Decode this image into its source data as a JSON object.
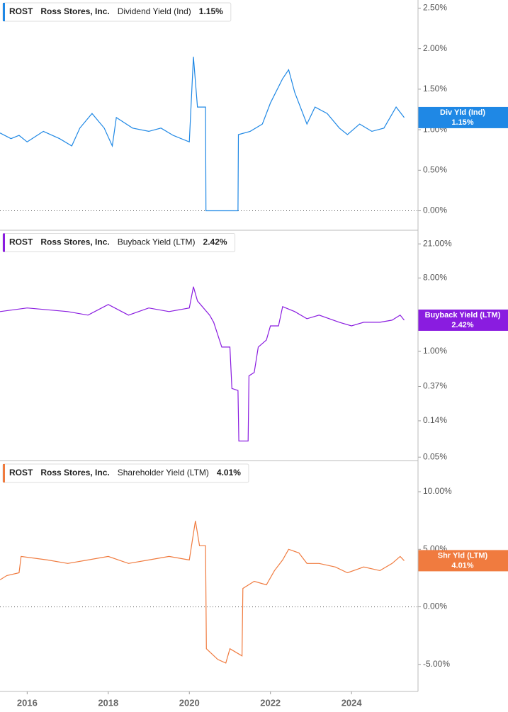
{
  "chart_data": [
    {
      "type": "line",
      "ticker": "ROST",
      "company": "Ross Stores, Inc.",
      "series_label": "Dividend Yield (Ind)",
      "last_value_label": "1.15%",
      "badge_label": "Div Yld (Ind)",
      "xlim": [
        2015.33,
        2025.64
      ],
      "ylim": [
        -0.24,
        2.6
      ],
      "y_scale": "linear",
      "zero_line": true,
      "yticks": [
        {
          "value": 0,
          "label": "0.00%"
        },
        {
          "value": 0.5,
          "label": "0.50%"
        },
        {
          "value": 1,
          "label": "1.00%"
        },
        {
          "value": 1.5,
          "label": "1.50%"
        },
        {
          "value": 2,
          "label": "2.00%"
        },
        {
          "value": 2.5,
          "label": "2.50%"
        }
      ],
      "x": [
        2015.33,
        2015.6,
        2015.8,
        2016.0,
        2016.4,
        2016.8,
        2017.1,
        2017.3,
        2017.6,
        2017.9,
        2018.1,
        2018.2,
        2018.6,
        2019.0,
        2019.3,
        2019.6,
        2020.0,
        2020.1,
        2020.2,
        2020.4,
        2020.41,
        2021.2,
        2021.21,
        2021.5,
        2021.8,
        2022.0,
        2022.3,
        2022.45,
        2022.6,
        2022.9,
        2023.1,
        2023.4,
        2023.7,
        2023.9,
        2024.2,
        2024.5,
        2024.8,
        2025.1,
        2025.3
      ],
      "series": [
        {
          "name": "Dividend Yield (Ind)",
          "color": "#1f88e5",
          "values": [
            0.96,
            0.89,
            0.93,
            0.85,
            0.98,
            0.89,
            0.8,
            1.02,
            1.2,
            1.02,
            0.8,
            1.15,
            1.02,
            0.98,
            1.02,
            0.93,
            0.85,
            1.9,
            1.28,
            1.28,
            0,
            0,
            0.94,
            0.98,
            1.07,
            1.33,
            1.63,
            1.74,
            1.46,
            1.07,
            1.28,
            1.2,
            1.02,
            0.94,
            1.07,
            0.98,
            1.02,
            1.28,
            1.15
          ]
        }
      ]
    },
    {
      "type": "line",
      "ticker": "ROST",
      "company": "Ross Stores, Inc.",
      "series_label": "Buyback Yield (LTM)",
      "last_value_label": "2.42%",
      "badge_label": "Buyback Yield (LTM)",
      "xlim": [
        2015.33,
        2025.64
      ],
      "ylim": [
        0.045,
        30.6
      ],
      "y_scale": "log",
      "zero_line": false,
      "yticks": [
        {
          "value": 0.05,
          "label": "0.05%"
        },
        {
          "value": 0.14,
          "label": "0.14%"
        },
        {
          "value": 0.37,
          "label": "0.37%"
        },
        {
          "value": 1,
          "label": "1.00%"
        },
        {
          "value": 8,
          "label": "8.00%"
        },
        {
          "value": 21,
          "label": "21.00%"
        }
      ],
      "x": [
        2015.33,
        2016.0,
        2017.0,
        2017.5,
        2018.0,
        2018.5,
        2019.0,
        2019.5,
        2020.0,
        2020.1,
        2020.2,
        2020.5,
        2020.6,
        2020.8,
        2021.0,
        2021.05,
        2021.2,
        2021.22,
        2021.45,
        2021.47,
        2021.6,
        2021.7,
        2021.9,
        2022.0,
        2022.2,
        2022.3,
        2022.6,
        2022.9,
        2023.2,
        2023.7,
        2024.0,
        2024.3,
        2024.7,
        2025.0,
        2025.2,
        2025.3
      ],
      "series": [
        {
          "name": "Buyback Yield (LTM)",
          "color": "#8a1ce0",
          "values": [
            3.09,
            3.42,
            3.09,
            2.79,
            3.77,
            2.79,
            3.42,
            3.09,
            3.42,
            6.25,
            4.17,
            2.79,
            2.28,
            1.13,
            1.13,
            0.35,
            0.33,
            0.079,
            0.079,
            0.5,
            0.55,
            1.13,
            1.38,
            2.06,
            2.06,
            3.55,
            3.09,
            2.52,
            2.79,
            2.28,
            2.06,
            2.28,
            2.28,
            2.42,
            2.79,
            2.42
          ]
        }
      ]
    },
    {
      "type": "line",
      "ticker": "ROST",
      "company": "Ross Stores, Inc.",
      "series_label": "Shareholder Yield (LTM)",
      "last_value_label": "4.01%",
      "badge_label": "Shr Yld (LTM)",
      "xlim": [
        2015.33,
        2025.64
      ],
      "ylim": [
        -7.35,
        12.65
      ],
      "y_scale": "linear",
      "zero_line": true,
      "yticks": [
        {
          "value": -5,
          "label": "-5.00%"
        },
        {
          "value": 0,
          "label": "0.00%"
        },
        {
          "value": 5,
          "label": "5.00%"
        },
        {
          "value": 10,
          "label": "10.00%"
        }
      ],
      "xticks": [
        2016,
        2018,
        2020,
        2022,
        2024
      ],
      "x": [
        2015.33,
        2015.5,
        2015.8,
        2015.85,
        2016.5,
        2017.0,
        2017.5,
        2018.0,
        2018.5,
        2019.0,
        2019.5,
        2020.0,
        2020.15,
        2020.25,
        2020.4,
        2020.42,
        2020.7,
        2020.9,
        2021.0,
        2021.3,
        2021.32,
        2021.6,
        2021.9,
        2022.1,
        2022.3,
        2022.45,
        2022.7,
        2022.9,
        2023.2,
        2023.6,
        2023.9,
        2024.3,
        2024.7,
        2025.0,
        2025.2,
        2025.3
      ],
      "series": [
        {
          "name": "Shareholder Yield (LTM)",
          "color": "#f07b3f",
          "values": [
            2.35,
            2.72,
            2.96,
            4.38,
            4.07,
            3.77,
            4.07,
            4.38,
            3.77,
            4.07,
            4.38,
            4.07,
            7.47,
            5.31,
            5.31,
            -3.64,
            -4.57,
            -4.88,
            -3.64,
            -4.26,
            1.6,
            2.22,
            1.91,
            3.15,
            4.07,
            5.0,
            4.69,
            3.77,
            3.77,
            3.46,
            2.96,
            3.46,
            3.15,
            3.77,
            4.38,
            4.01
          ]
        }
      ]
    }
  ]
}
